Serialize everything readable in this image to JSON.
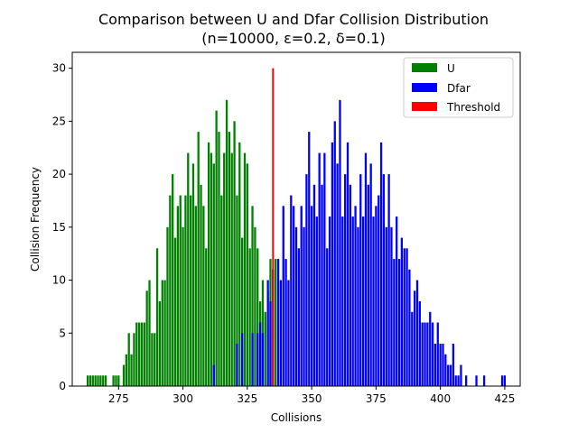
{
  "chart_data": {
    "type": "bar",
    "title": "Comparison between U and Dfar Collision Distribution",
    "subtitle": "(n=10000, ε=0.2, δ=0.1)",
    "xlabel": "Collisions",
    "ylabel": "Collision Frequency",
    "xlim": [
      257,
      431
    ],
    "ylim": [
      0,
      31.5
    ],
    "x_ticks": [
      275,
      300,
      325,
      350,
      375,
      400,
      425
    ],
    "y_ticks": [
      0,
      5,
      10,
      15,
      20,
      25,
      30
    ],
    "grid": false,
    "legend_position": "top-right",
    "series": [
      {
        "name": "U",
        "color": "#008000",
        "points": [
          [
            263,
            1
          ],
          [
            264,
            1
          ],
          [
            265,
            1
          ],
          [
            266,
            1
          ],
          [
            267,
            1
          ],
          [
            268,
            1
          ],
          [
            269,
            1
          ],
          [
            270,
            1
          ],
          [
            273,
            1
          ],
          [
            274,
            1
          ],
          [
            275,
            1
          ],
          [
            277,
            2
          ],
          [
            278,
            3
          ],
          [
            279,
            5
          ],
          [
            280,
            3
          ],
          [
            281,
            5
          ],
          [
            282,
            6
          ],
          [
            283,
            6
          ],
          [
            284,
            6
          ],
          [
            285,
            6
          ],
          [
            286,
            9
          ],
          [
            287,
            10
          ],
          [
            288,
            5
          ],
          [
            289,
            5
          ],
          [
            290,
            13
          ],
          [
            291,
            8
          ],
          [
            292,
            10
          ],
          [
            293,
            10
          ],
          [
            294,
            15
          ],
          [
            295,
            18
          ],
          [
            296,
            20
          ],
          [
            297,
            14
          ],
          [
            298,
            17
          ],
          [
            299,
            18
          ],
          [
            300,
            15
          ],
          [
            301,
            18
          ],
          [
            302,
            22
          ],
          [
            303,
            18
          ],
          [
            304,
            21
          ],
          [
            305,
            17
          ],
          [
            306,
            24
          ],
          [
            307,
            19
          ],
          [
            308,
            17
          ],
          [
            309,
            13
          ],
          [
            310,
            23
          ],
          [
            311,
            22
          ],
          [
            312,
            21
          ],
          [
            313,
            26
          ],
          [
            314,
            24
          ],
          [
            315,
            18
          ],
          [
            316,
            22
          ],
          [
            317,
            27
          ],
          [
            318,
            24
          ],
          [
            319,
            22
          ],
          [
            320,
            25
          ],
          [
            321,
            18
          ],
          [
            322,
            23
          ],
          [
            323,
            14
          ],
          [
            324,
            22
          ],
          [
            325,
            21
          ],
          [
            326,
            13
          ],
          [
            327,
            17
          ],
          [
            328,
            15
          ],
          [
            329,
            13
          ],
          [
            330,
            8
          ],
          [
            331,
            10
          ],
          [
            332,
            7
          ],
          [
            333,
            9
          ],
          [
            334,
            12
          ],
          [
            335,
            11
          ],
          [
            336,
            12
          ]
        ]
      },
      {
        "name": "Dfar",
        "color": "#0000ff",
        "points": [
          [
            312,
            2
          ],
          [
            321,
            4
          ],
          [
            323,
            5
          ],
          [
            327,
            5
          ],
          [
            329,
            5
          ],
          [
            330,
            6
          ],
          [
            331,
            5
          ],
          [
            333,
            10
          ],
          [
            334,
            8
          ],
          [
            335,
            11
          ],
          [
            337,
            12
          ],
          [
            338,
            10
          ],
          [
            339,
            17
          ],
          [
            340,
            12
          ],
          [
            341,
            10
          ],
          [
            342,
            18
          ],
          [
            343,
            17
          ],
          [
            344,
            15
          ],
          [
            345,
            13
          ],
          [
            346,
            17
          ],
          [
            347,
            15
          ],
          [
            348,
            20
          ],
          [
            349,
            24
          ],
          [
            350,
            17
          ],
          [
            351,
            19
          ],
          [
            352,
            16
          ],
          [
            353,
            22
          ],
          [
            354,
            19
          ],
          [
            355,
            22
          ],
          [
            356,
            13
          ],
          [
            357,
            16
          ],
          [
            358,
            23
          ],
          [
            359,
            25
          ],
          [
            360,
            21
          ],
          [
            361,
            27
          ],
          [
            362,
            16
          ],
          [
            363,
            20
          ],
          [
            364,
            23
          ],
          [
            365,
            19
          ],
          [
            366,
            16
          ],
          [
            367,
            17
          ],
          [
            368,
            15
          ],
          [
            369,
            20
          ],
          [
            370,
            16
          ],
          [
            371,
            22
          ],
          [
            372,
            19
          ],
          [
            373,
            21
          ],
          [
            374,
            16
          ],
          [
            375,
            17
          ],
          [
            376,
            18
          ],
          [
            377,
            23
          ],
          [
            378,
            20
          ],
          [
            379,
            15
          ],
          [
            380,
            20
          ],
          [
            381,
            15
          ],
          [
            382,
            12
          ],
          [
            383,
            16
          ],
          [
            384,
            12
          ],
          [
            385,
            14
          ],
          [
            386,
            13
          ],
          [
            387,
            13
          ],
          [
            388,
            11
          ],
          [
            389,
            7
          ],
          [
            390,
            9
          ],
          [
            391,
            10
          ],
          [
            392,
            8
          ],
          [
            393,
            6
          ],
          [
            394,
            6
          ],
          [
            395,
            6
          ],
          [
            396,
            7
          ],
          [
            397,
            6
          ],
          [
            398,
            4
          ],
          [
            399,
            6
          ],
          [
            400,
            4
          ],
          [
            401,
            4
          ],
          [
            402,
            3
          ],
          [
            403,
            2
          ],
          [
            404,
            2
          ],
          [
            405,
            4
          ],
          [
            406,
            1
          ],
          [
            407,
            1
          ],
          [
            408,
            2
          ],
          [
            410,
            1
          ],
          [
            414,
            1
          ],
          [
            417,
            1
          ],
          [
            424,
            1
          ],
          [
            425,
            1
          ]
        ]
      },
      {
        "name": "Threshold",
        "color": "#ff0000",
        "points": [
          [
            335,
            30
          ]
        ]
      }
    ]
  }
}
